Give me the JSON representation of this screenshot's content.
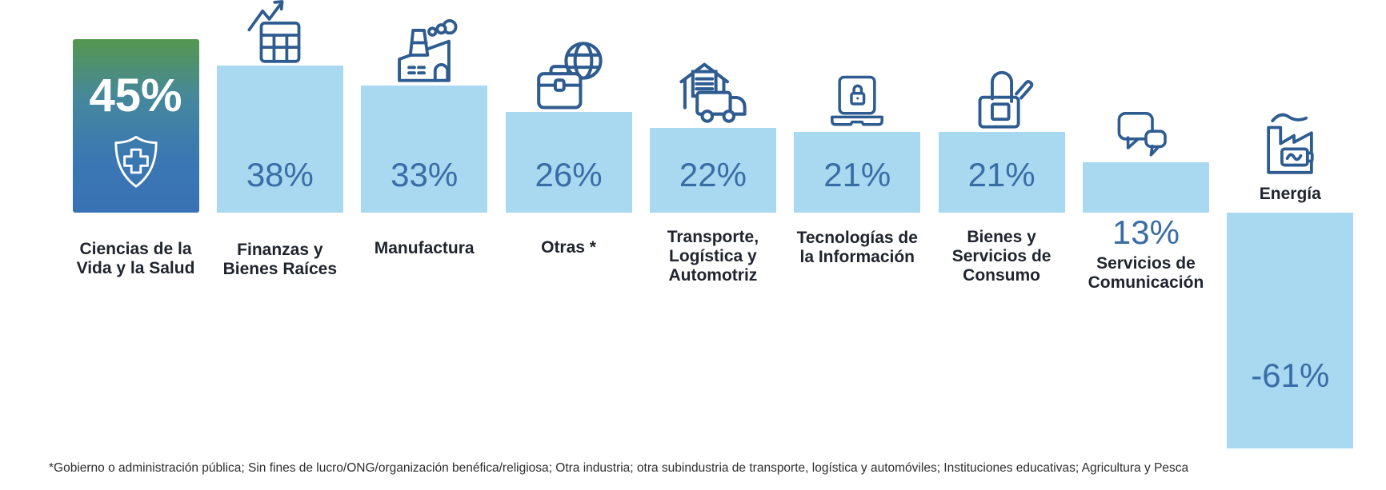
{
  "chart_data": {
    "type": "bar",
    "title": "",
    "unit": "%",
    "categories": [
      "Ciencias de la Vida y la Salud",
      "Finanzas y Bienes Raíces",
      "Manufactura",
      "Otras *",
      "Transporte, Logística y Automotriz",
      "Tecnologías de la Información",
      "Bienes y Servicios de Consumo",
      "Servicios de Comunicación",
      "Energía"
    ],
    "label_lines": [
      [
        "Ciencias de la",
        "Vida y la Salud"
      ],
      [
        "Finanzas y",
        "Bienes Raíces"
      ],
      [
        "Manufactura"
      ],
      [
        "Otras *"
      ],
      [
        "Transporte,",
        "Logística y",
        "Automotriz"
      ],
      [
        "Tecnologías de",
        "la Información"
      ],
      [
        "Bienes y",
        "Servicios de",
        "Consumo"
      ],
      [
        "Servicios de",
        "Comunicación"
      ],
      [
        "Energía"
      ]
    ],
    "values": [
      45,
      38,
      33,
      26,
      22,
      21,
      21,
      13,
      -61
    ],
    "value_labels": [
      "45%",
      "38%",
      "33%",
      "26%",
      "22%",
      "21%",
      "21%",
      "13%",
      "-61%"
    ],
    "icons": [
      "shield-cross-icon",
      "table-growth-icon",
      "factory-icon",
      "briefcase-globe-icon",
      "warehouse-truck-icon",
      "laptop-lock-icon",
      "shopping-bag-icon",
      "speech-bubbles-icon",
      "factory-battery-icon"
    ],
    "ylim": [
      -61,
      45
    ],
    "grid": false,
    "legend": "none",
    "colors": {
      "bar": "#A9D8F1",
      "value_text": "#3A6CA6",
      "icon_stroke": "#2E5C90",
      "category_text": "#20242E",
      "highlight_gradient_top": "#55974E",
      "highlight_gradient_bottom": "#3972B4",
      "highlight_text": "#FFFFFF"
    }
  },
  "footnote": "*Gobierno o administración pública; Sin fines de lucro/ONG/organización benéfica/religiosa; Otra industria; otra subindustria de transporte, logística y automóviles; Instituciones educativas; Agricultura y Pesca"
}
